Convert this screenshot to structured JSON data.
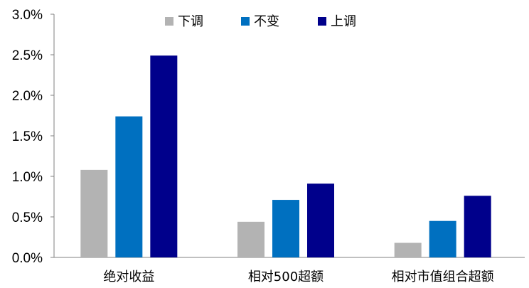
{
  "chart_data": {
    "type": "bar",
    "categories": [
      "绝对收益",
      "相对500超额",
      "相对市值组合超额"
    ],
    "series": [
      {
        "name": "下调",
        "color": "#b3b3b3",
        "values": [
          1.08,
          0.44,
          0.18
        ]
      },
      {
        "name": "不变",
        "color": "#0070c0",
        "values": [
          1.74,
          0.71,
          0.45
        ]
      },
      {
        "name": "上调",
        "color": "#00008b",
        "values": [
          2.49,
          0.91,
          0.76
        ]
      }
    ],
    "y_ticks": [
      "0.0%",
      "0.5%",
      "1.0%",
      "1.5%",
      "2.0%",
      "2.5%",
      "3.0%"
    ],
    "ylim": [
      0,
      3.0
    ],
    "unit": "%",
    "grid": false,
    "legend_position": "top-center"
  }
}
